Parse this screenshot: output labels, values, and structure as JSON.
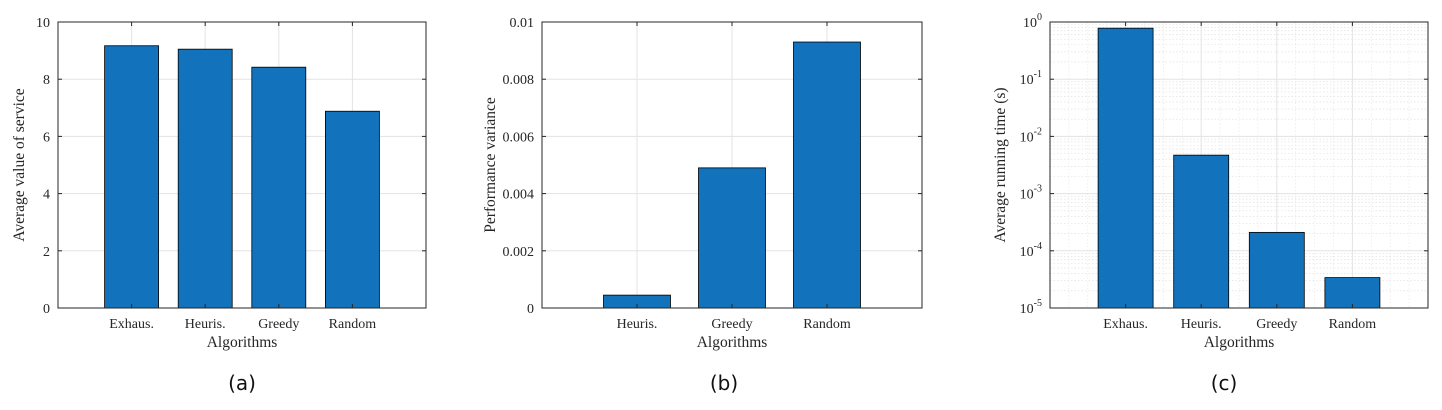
{
  "chart_data": [
    {
      "type": "bar",
      "caption": "(a)",
      "categories": [
        "Exhaus.",
        "Heuris.",
        "Greedy",
        "Random"
      ],
      "values": [
        9.17,
        9.05,
        8.42,
        6.88
      ],
      "xlabel": "Algorithms",
      "ylabel": "Average value of service",
      "ylim": [
        0,
        10
      ],
      "yticks": [
        "0",
        "2",
        "4",
        "6",
        "8",
        "10"
      ],
      "yscale": "linear",
      "grid": true,
      "bar_color": "#1272BC"
    },
    {
      "type": "bar",
      "caption": "(b)",
      "categories": [
        "Heuris.",
        "Greedy",
        "Random"
      ],
      "values": [
        0.00045,
        0.0049,
        0.0093
      ],
      "xlabel": "Algorithms",
      "ylabel": "Performance variance",
      "ylim": [
        0,
        0.01
      ],
      "yticks": [
        "0",
        "0.002",
        "0.004",
        "0.006",
        "0.008",
        "0.01"
      ],
      "yscale": "linear",
      "grid": true,
      "bar_color": "#1272BC"
    },
    {
      "type": "bar",
      "caption": "(c)",
      "categories": [
        "Exhaus.",
        "Heuris.",
        "Greedy",
        "Random"
      ],
      "values": [
        0.78,
        0.0047,
        0.00021,
        3.4e-05
      ],
      "xlabel": "Algorithms",
      "ylabel": "Average running time (s)",
      "ylim": [
        1e-05,
        1
      ],
      "yticks": [
        "10^-5",
        "10^-4",
        "10^-3",
        "10^-2",
        "10^-1",
        "10^0"
      ],
      "yscale": "log",
      "grid": true,
      "bar_color": "#1272BC"
    }
  ]
}
